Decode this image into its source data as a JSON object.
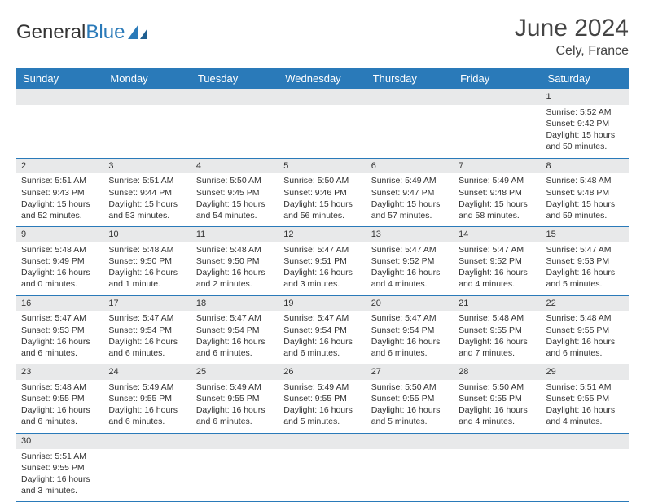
{
  "logo": {
    "text1": "General",
    "text2": "Blue"
  },
  "header": {
    "month": "June 2024",
    "location": "Cely, France"
  },
  "colors": {
    "accent": "#2a7ab9",
    "header_bg": "#2a7ab9",
    "header_text": "#ffffff",
    "daynum_bg": "#e8e9ea",
    "cell_border": "#2a7ab9",
    "text": "#333333",
    "background": "#ffffff"
  },
  "typography": {
    "month_fontsize": 30,
    "location_fontsize": 16,
    "dayhead_fontsize": 13,
    "cell_fontsize": 10.5,
    "logo_fontsize": 24
  },
  "daynames": [
    "Sunday",
    "Monday",
    "Tuesday",
    "Wednesday",
    "Thursday",
    "Friday",
    "Saturday"
  ],
  "weeks": [
    [
      {
        "empty": true
      },
      {
        "empty": true
      },
      {
        "empty": true
      },
      {
        "empty": true
      },
      {
        "empty": true
      },
      {
        "empty": true
      },
      {
        "day": "1",
        "sunrise": "Sunrise: 5:52 AM",
        "sunset": "Sunset: 9:42 PM",
        "daylight": "Daylight: 15 hours and 50 minutes."
      }
    ],
    [
      {
        "day": "2",
        "sunrise": "Sunrise: 5:51 AM",
        "sunset": "Sunset: 9:43 PM",
        "daylight": "Daylight: 15 hours and 52 minutes."
      },
      {
        "day": "3",
        "sunrise": "Sunrise: 5:51 AM",
        "sunset": "Sunset: 9:44 PM",
        "daylight": "Daylight: 15 hours and 53 minutes."
      },
      {
        "day": "4",
        "sunrise": "Sunrise: 5:50 AM",
        "sunset": "Sunset: 9:45 PM",
        "daylight": "Daylight: 15 hours and 54 minutes."
      },
      {
        "day": "5",
        "sunrise": "Sunrise: 5:50 AM",
        "sunset": "Sunset: 9:46 PM",
        "daylight": "Daylight: 15 hours and 56 minutes."
      },
      {
        "day": "6",
        "sunrise": "Sunrise: 5:49 AM",
        "sunset": "Sunset: 9:47 PM",
        "daylight": "Daylight: 15 hours and 57 minutes."
      },
      {
        "day": "7",
        "sunrise": "Sunrise: 5:49 AM",
        "sunset": "Sunset: 9:48 PM",
        "daylight": "Daylight: 15 hours and 58 minutes."
      },
      {
        "day": "8",
        "sunrise": "Sunrise: 5:48 AM",
        "sunset": "Sunset: 9:48 PM",
        "daylight": "Daylight: 15 hours and 59 minutes."
      }
    ],
    [
      {
        "day": "9",
        "sunrise": "Sunrise: 5:48 AM",
        "sunset": "Sunset: 9:49 PM",
        "daylight": "Daylight: 16 hours and 0 minutes."
      },
      {
        "day": "10",
        "sunrise": "Sunrise: 5:48 AM",
        "sunset": "Sunset: 9:50 PM",
        "daylight": "Daylight: 16 hours and 1 minute."
      },
      {
        "day": "11",
        "sunrise": "Sunrise: 5:48 AM",
        "sunset": "Sunset: 9:50 PM",
        "daylight": "Daylight: 16 hours and 2 minutes."
      },
      {
        "day": "12",
        "sunrise": "Sunrise: 5:47 AM",
        "sunset": "Sunset: 9:51 PM",
        "daylight": "Daylight: 16 hours and 3 minutes."
      },
      {
        "day": "13",
        "sunrise": "Sunrise: 5:47 AM",
        "sunset": "Sunset: 9:52 PM",
        "daylight": "Daylight: 16 hours and 4 minutes."
      },
      {
        "day": "14",
        "sunrise": "Sunrise: 5:47 AM",
        "sunset": "Sunset: 9:52 PM",
        "daylight": "Daylight: 16 hours and 4 minutes."
      },
      {
        "day": "15",
        "sunrise": "Sunrise: 5:47 AM",
        "sunset": "Sunset: 9:53 PM",
        "daylight": "Daylight: 16 hours and 5 minutes."
      }
    ],
    [
      {
        "day": "16",
        "sunrise": "Sunrise: 5:47 AM",
        "sunset": "Sunset: 9:53 PM",
        "daylight": "Daylight: 16 hours and 6 minutes."
      },
      {
        "day": "17",
        "sunrise": "Sunrise: 5:47 AM",
        "sunset": "Sunset: 9:54 PM",
        "daylight": "Daylight: 16 hours and 6 minutes."
      },
      {
        "day": "18",
        "sunrise": "Sunrise: 5:47 AM",
        "sunset": "Sunset: 9:54 PM",
        "daylight": "Daylight: 16 hours and 6 minutes."
      },
      {
        "day": "19",
        "sunrise": "Sunrise: 5:47 AM",
        "sunset": "Sunset: 9:54 PM",
        "daylight": "Daylight: 16 hours and 6 minutes."
      },
      {
        "day": "20",
        "sunrise": "Sunrise: 5:47 AM",
        "sunset": "Sunset: 9:54 PM",
        "daylight": "Daylight: 16 hours and 6 minutes."
      },
      {
        "day": "21",
        "sunrise": "Sunrise: 5:48 AM",
        "sunset": "Sunset: 9:55 PM",
        "daylight": "Daylight: 16 hours and 7 minutes."
      },
      {
        "day": "22",
        "sunrise": "Sunrise: 5:48 AM",
        "sunset": "Sunset: 9:55 PM",
        "daylight": "Daylight: 16 hours and 6 minutes."
      }
    ],
    [
      {
        "day": "23",
        "sunrise": "Sunrise: 5:48 AM",
        "sunset": "Sunset: 9:55 PM",
        "daylight": "Daylight: 16 hours and 6 minutes."
      },
      {
        "day": "24",
        "sunrise": "Sunrise: 5:49 AM",
        "sunset": "Sunset: 9:55 PM",
        "daylight": "Daylight: 16 hours and 6 minutes."
      },
      {
        "day": "25",
        "sunrise": "Sunrise: 5:49 AM",
        "sunset": "Sunset: 9:55 PM",
        "daylight": "Daylight: 16 hours and 6 minutes."
      },
      {
        "day": "26",
        "sunrise": "Sunrise: 5:49 AM",
        "sunset": "Sunset: 9:55 PM",
        "daylight": "Daylight: 16 hours and 5 minutes."
      },
      {
        "day": "27",
        "sunrise": "Sunrise: 5:50 AM",
        "sunset": "Sunset: 9:55 PM",
        "daylight": "Daylight: 16 hours and 5 minutes."
      },
      {
        "day": "28",
        "sunrise": "Sunrise: 5:50 AM",
        "sunset": "Sunset: 9:55 PM",
        "daylight": "Daylight: 16 hours and 4 minutes."
      },
      {
        "day": "29",
        "sunrise": "Sunrise: 5:51 AM",
        "sunset": "Sunset: 9:55 PM",
        "daylight": "Daylight: 16 hours and 4 minutes."
      }
    ],
    [
      {
        "day": "30",
        "sunrise": "Sunrise: 5:51 AM",
        "sunset": "Sunset: 9:55 PM",
        "daylight": "Daylight: 16 hours and 3 minutes."
      },
      {
        "empty": true
      },
      {
        "empty": true
      },
      {
        "empty": true
      },
      {
        "empty": true
      },
      {
        "empty": true
      },
      {
        "empty": true
      }
    ]
  ]
}
